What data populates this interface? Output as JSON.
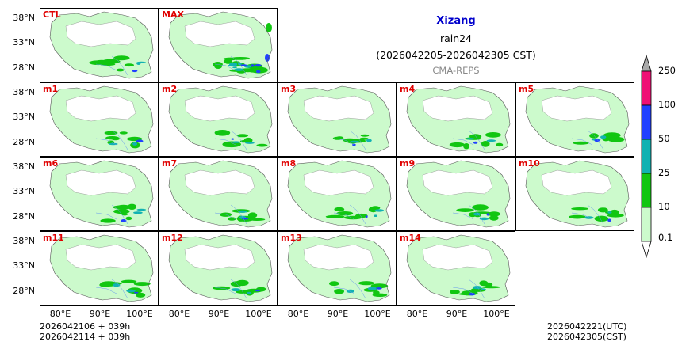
{
  "title": {
    "region": "Xizang",
    "variable": "rain24",
    "period": "(2026042205-2026042305 CST)",
    "source": "CMA-REPS"
  },
  "chart_data": {
    "type": "map-panels",
    "title": "Xizang",
    "panels": [
      "CTL",
      "MAX",
      "m1",
      "m2",
      "m3",
      "m4",
      "m5",
      "m6",
      "m7",
      "m8",
      "m9",
      "m10",
      "m11",
      "m12",
      "m13",
      "m14"
    ],
    "lat_ticks": [
      "38°N",
      "33°N",
      "28°N"
    ],
    "lon_ticks": [
      "80°E",
      "90°E",
      "100°E"
    ],
    "colorbar": {
      "levels": [
        "0.1",
        "10",
        "25",
        "50",
        "100",
        "250"
      ],
      "colors": [
        "#ccfacc",
        "#11c611",
        "#11b2b2",
        "#2040ff",
        "#ef1075"
      ],
      "under_color": "#ffffff",
      "over_color": "#aaaaaa"
    }
  },
  "colors": {
    "light": "#ccfacc",
    "green": "#11c611",
    "teal": "#11b2b2",
    "blue": "#2040ff",
    "magenta": "#ef1075",
    "label_red": "#e00000",
    "title_blue": "#0000cc",
    "source_gray": "#888888"
  },
  "footer": {
    "left_line1": "2026042106  +  039h",
    "left_line2": "2026042114  +  039h",
    "right_line1": "2026042221(UTC)",
    "right_line2": "2026042305(CST)"
  }
}
